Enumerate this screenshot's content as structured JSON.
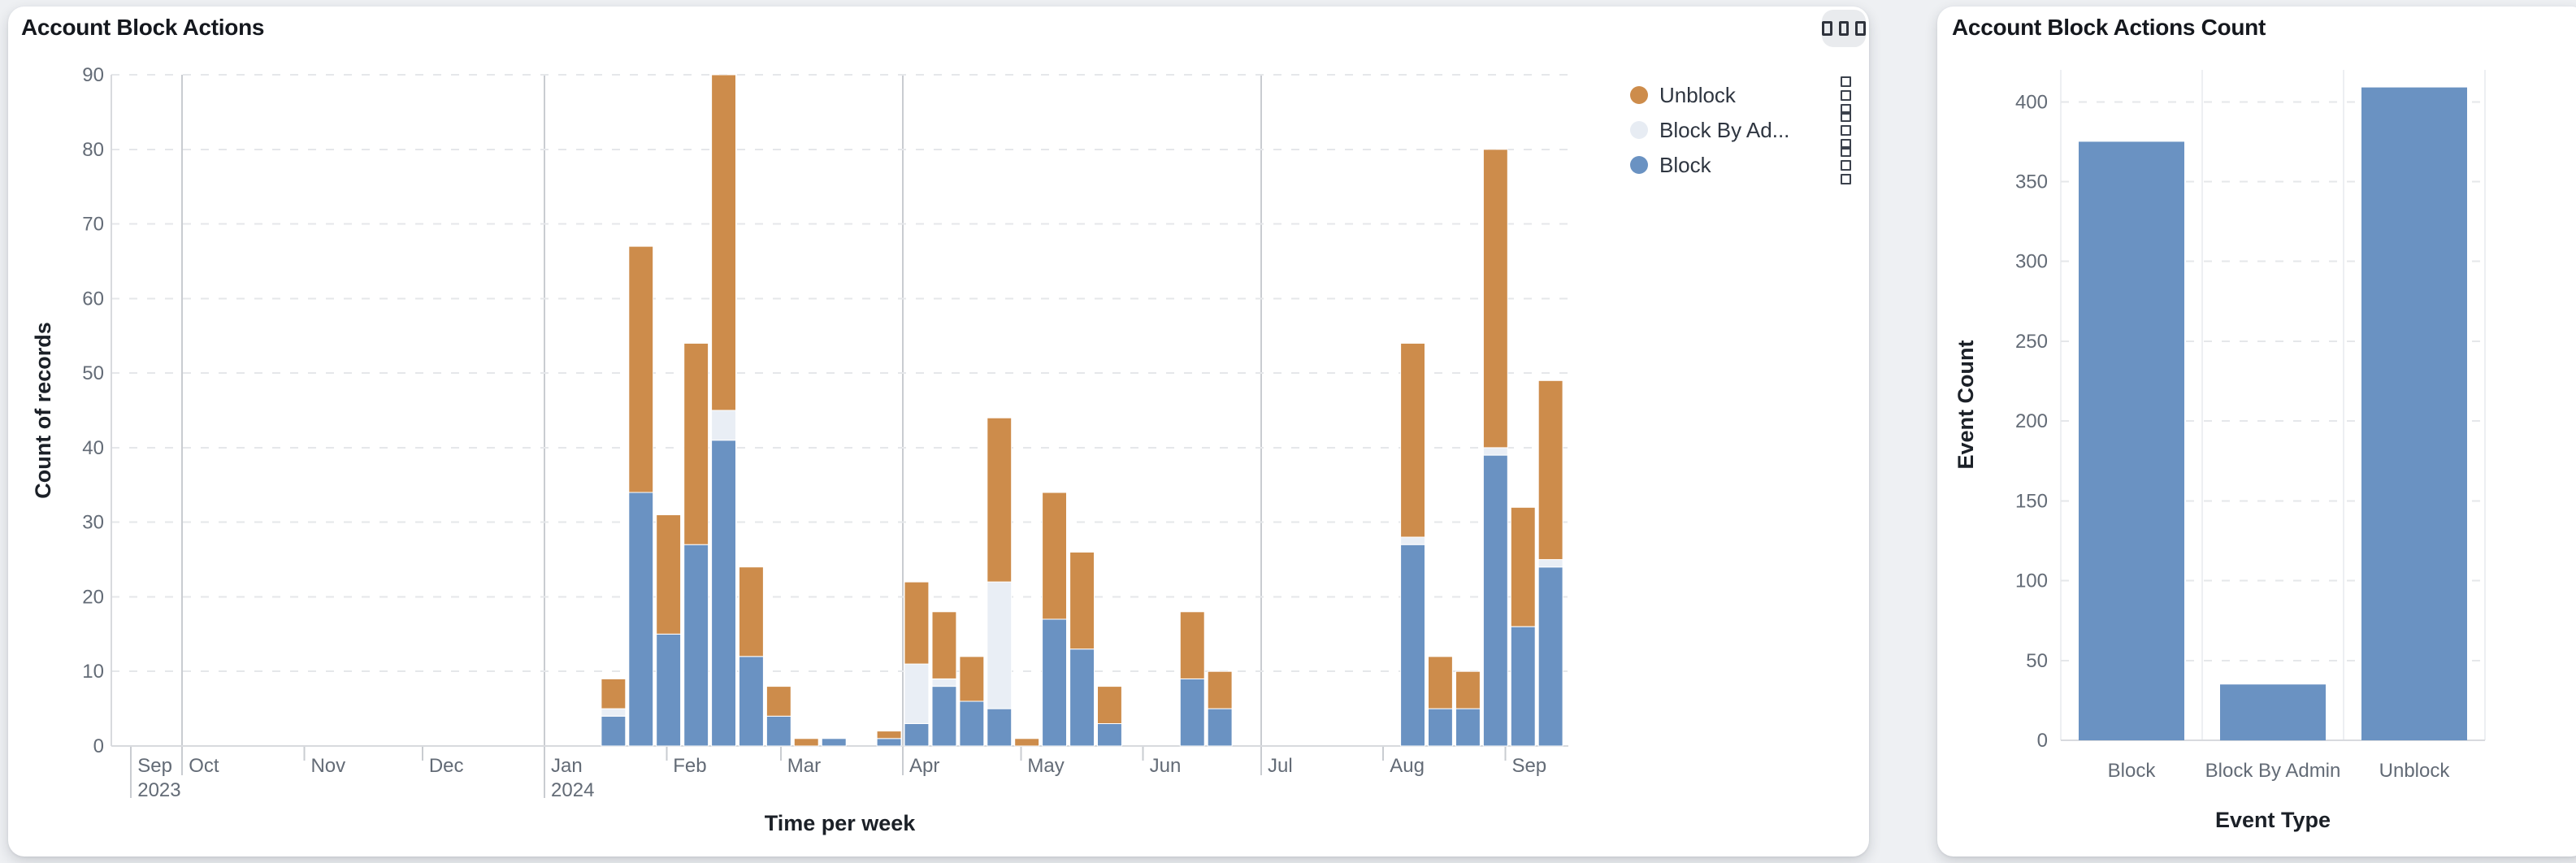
{
  "page": {
    "background": "#eef0f3"
  },
  "left_panel": {
    "title": "Account Block Actions",
    "menu_button_icon": "three-squares-menu",
    "legend": {
      "items": [
        {
          "label": "Unblock",
          "color": "#cd8c4b"
        },
        {
          "label": "Block By Ad...",
          "color": "#e7ecf3"
        },
        {
          "label": "Block",
          "color": "#6a92c2"
        }
      ],
      "item_handle_icon": "kebab-squares"
    }
  },
  "right_panel": {
    "title": "Account Block Actions Count"
  },
  "chart_data": [
    {
      "type": "bar",
      "stacked": true,
      "title": "Account Block Actions",
      "xlabel": "Time per week",
      "ylabel": "Count of records",
      "ylim": [
        0,
        90
      ],
      "y_ticks": [
        0,
        10,
        20,
        30,
        40,
        50,
        60,
        70,
        80,
        90
      ],
      "grid": "dashed-horizontal",
      "legend_position": "top-right",
      "x_domain": [
        "2023-09-13",
        "2024-09-17"
      ],
      "x_axis_ticks": [
        {
          "date": "2023-09-18",
          "label": "Sep",
          "year": "2023",
          "kind": "start"
        },
        {
          "date": "2023-10-01",
          "label": "Oct",
          "kind": "quarter"
        },
        {
          "date": "2023-11-01",
          "label": "Nov",
          "kind": "month"
        },
        {
          "date": "2023-12-01",
          "label": "Dec",
          "kind": "month"
        },
        {
          "date": "2024-01-01",
          "label": "Jan",
          "year": "2024",
          "kind": "quarter"
        },
        {
          "date": "2024-02-01",
          "label": "Feb",
          "kind": "month"
        },
        {
          "date": "2024-03-01",
          "label": "Mar",
          "kind": "month"
        },
        {
          "date": "2024-04-01",
          "label": "Apr",
          "kind": "quarter"
        },
        {
          "date": "2024-05-01",
          "label": "May",
          "kind": "month"
        },
        {
          "date": "2024-06-01",
          "label": "Jun",
          "kind": "month"
        },
        {
          "date": "2024-07-01",
          "label": "Jul",
          "kind": "quarter"
        },
        {
          "date": "2024-08-01",
          "label": "Aug",
          "kind": "month"
        },
        {
          "date": "2024-09-01",
          "label": "Sep",
          "kind": "month"
        }
      ],
      "series": [
        {
          "key": "block",
          "name": "Block",
          "color": "#6a92c2"
        },
        {
          "key": "block_by_admin",
          "name": "Block By Admin",
          "color": "#e9eef5"
        },
        {
          "key": "unblock",
          "name": "Unblock",
          "color": "#cd8c4b"
        }
      ],
      "weeks": [
        {
          "week": "2024-01-15",
          "block": 4,
          "block_by_admin": 1,
          "unblock": 4
        },
        {
          "week": "2024-01-22",
          "block": 34,
          "block_by_admin": 0,
          "unblock": 33
        },
        {
          "week": "2024-01-29",
          "block": 15,
          "block_by_admin": 0,
          "unblock": 16
        },
        {
          "week": "2024-02-05",
          "block": 27,
          "block_by_admin": 0,
          "unblock": 27
        },
        {
          "week": "2024-02-12",
          "block": 41,
          "block_by_admin": 4,
          "unblock": 45
        },
        {
          "week": "2024-02-19",
          "block": 12,
          "block_by_admin": 0,
          "unblock": 12
        },
        {
          "week": "2024-02-26",
          "block": 4,
          "block_by_admin": 0,
          "unblock": 4
        },
        {
          "week": "2024-03-04",
          "block": 0,
          "block_by_admin": 0,
          "unblock": 1
        },
        {
          "week": "2024-03-11",
          "block": 1,
          "block_by_admin": 0,
          "unblock": 0
        },
        {
          "week": "2024-03-25",
          "block": 1,
          "block_by_admin": 0,
          "unblock": 1
        },
        {
          "week": "2024-04-01",
          "block": 3,
          "block_by_admin": 8,
          "unblock": 11
        },
        {
          "week": "2024-04-08",
          "block": 8,
          "block_by_admin": 1,
          "unblock": 9
        },
        {
          "week": "2024-04-15",
          "block": 6,
          "block_by_admin": 0,
          "unblock": 6
        },
        {
          "week": "2024-04-22",
          "block": 5,
          "block_by_admin": 17,
          "unblock": 22
        },
        {
          "week": "2024-04-29",
          "block": 0,
          "block_by_admin": 0,
          "unblock": 1
        },
        {
          "week": "2024-05-06",
          "block": 17,
          "block_by_admin": 0,
          "unblock": 17
        },
        {
          "week": "2024-05-13",
          "block": 13,
          "block_by_admin": 0,
          "unblock": 13
        },
        {
          "week": "2024-05-20",
          "block": 3,
          "block_by_admin": 0,
          "unblock": 5
        },
        {
          "week": "2024-06-10",
          "block": 9,
          "block_by_admin": 0,
          "unblock": 9
        },
        {
          "week": "2024-06-17",
          "block": 5,
          "block_by_admin": 0,
          "unblock": 5
        },
        {
          "week": "2024-08-05",
          "block": 27,
          "block_by_admin": 1,
          "unblock": 26
        },
        {
          "week": "2024-08-12",
          "block": 5,
          "block_by_admin": 0,
          "unblock": 7
        },
        {
          "week": "2024-08-19",
          "block": 5,
          "block_by_admin": 0,
          "unblock": 5
        },
        {
          "week": "2024-08-26",
          "block": 39,
          "block_by_admin": 1,
          "unblock": 40
        },
        {
          "week": "2024-09-02",
          "block": 16,
          "block_by_admin": 0,
          "unblock": 16
        },
        {
          "week": "2024-09-09",
          "block": 24,
          "block_by_admin": 1,
          "unblock": 24
        }
      ]
    },
    {
      "type": "bar",
      "title": "Account Block Actions Count",
      "categories": [
        "Block",
        "Block By Admin",
        "Unblock"
      ],
      "values": [
        375,
        35,
        409
      ],
      "xlabel": "Event Type",
      "ylabel": "Event Count",
      "ylim": [
        0,
        420
      ],
      "y_ticks": [
        0,
        50,
        100,
        150,
        200,
        250,
        300,
        350,
        400
      ],
      "grid": "dashed-horizontal",
      "bar_color": "#6a92c2"
    }
  ],
  "colors": {
    "grid_dashed": "#e5e7ea",
    "grid_solid": "#d8dade",
    "quarter_line": "#c9ccd1",
    "category_band_line": "#edeff2",
    "tick_text": "#636b76",
    "title_text": "#15181e"
  }
}
